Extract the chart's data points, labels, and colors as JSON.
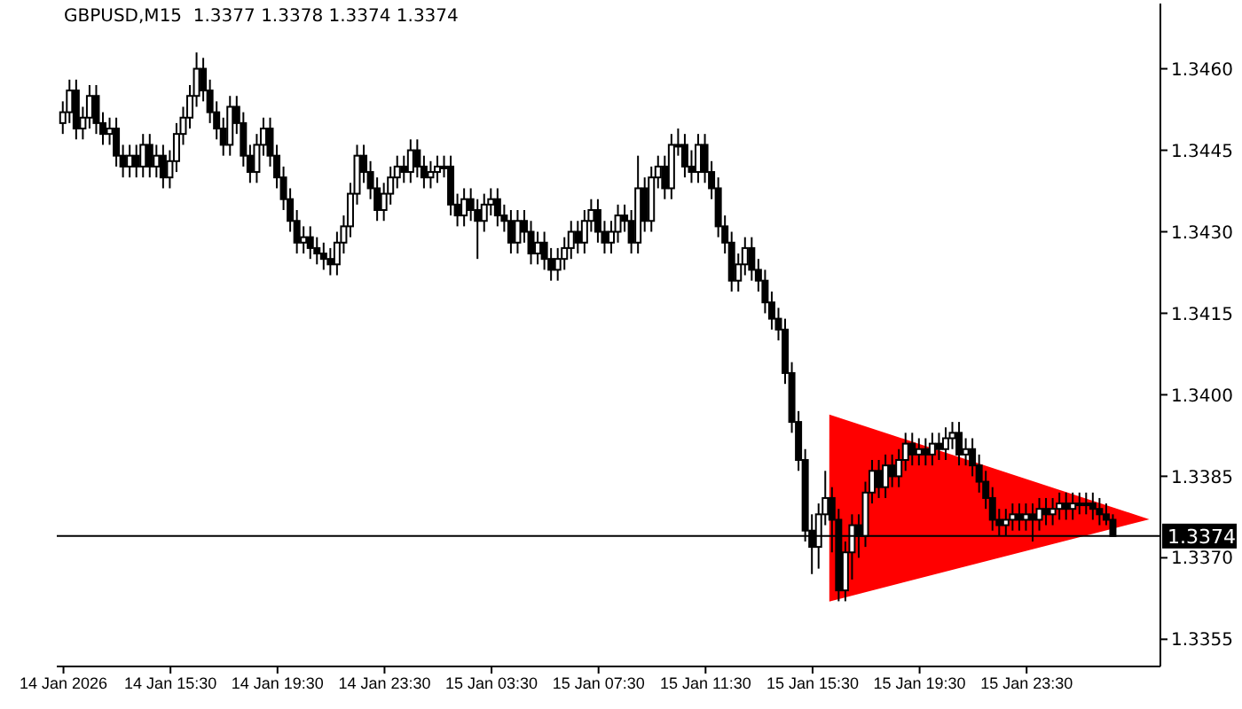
{
  "chart_data": {
    "type": "candlestick",
    "title": "GBPUSD,M15  1.3377 1.3378 1.3374 1.3374",
    "x": [
      "2026-01-14T11:30",
      "2026-01-14T11:45",
      "2026-01-14T12:00",
      "2026-01-14T12:15",
      "2026-01-14T12:30",
      "2026-01-14T12:45",
      "2026-01-14T13:00",
      "2026-01-14T13:15",
      "2026-01-14T13:30",
      "2026-01-14T13:45",
      "2026-01-14T14:00",
      "2026-01-14T14:15",
      "2026-01-14T14:30",
      "2026-01-14T14:45",
      "2026-01-14T15:00",
      "2026-01-14T15:15",
      "2026-01-14T15:30",
      "2026-01-14T15:45",
      "2026-01-14T16:00",
      "2026-01-14T16:15",
      "2026-01-14T16:30",
      "2026-01-14T16:45",
      "2026-01-14T17:00",
      "2026-01-14T17:15",
      "2026-01-14T17:30",
      "2026-01-14T17:45",
      "2026-01-14T18:00",
      "2026-01-14T18:15",
      "2026-01-14T18:30",
      "2026-01-14T18:45",
      "2026-01-14T19:00",
      "2026-01-14T19:15",
      "2026-01-14T19:30",
      "2026-01-14T19:45",
      "2026-01-14T20:00",
      "2026-01-14T20:15",
      "2026-01-14T20:30",
      "2026-01-14T20:45",
      "2026-01-14T21:00",
      "2026-01-14T21:15",
      "2026-01-14T21:30",
      "2026-01-14T21:45",
      "2026-01-14T22:00",
      "2026-01-14T22:15",
      "2026-01-14T22:30",
      "2026-01-14T22:45",
      "2026-01-14T23:00",
      "2026-01-14T23:15",
      "2026-01-14T23:30",
      "2026-01-14T23:45",
      "2026-01-15T00:00",
      "2026-01-15T00:15",
      "2026-01-15T00:30",
      "2026-01-15T00:45",
      "2026-01-15T01:00",
      "2026-01-15T01:15",
      "2026-01-15T01:30",
      "2026-01-15T01:45",
      "2026-01-15T02:00",
      "2026-01-15T02:15",
      "2026-01-15T02:30",
      "2026-01-15T02:45",
      "2026-01-15T03:00",
      "2026-01-15T03:15",
      "2026-01-15T03:30",
      "2026-01-15T03:45",
      "2026-01-15T04:00",
      "2026-01-15T04:15",
      "2026-01-15T04:30",
      "2026-01-15T04:45",
      "2026-01-15T05:00",
      "2026-01-15T05:15",
      "2026-01-15T05:30",
      "2026-01-15T05:45",
      "2026-01-15T06:00",
      "2026-01-15T06:15",
      "2026-01-15T06:30",
      "2026-01-15T06:45",
      "2026-01-15T07:00",
      "2026-01-15T07:15",
      "2026-01-15T07:30",
      "2026-01-15T07:45",
      "2026-01-15T08:00",
      "2026-01-15T08:15",
      "2026-01-15T08:30",
      "2026-01-15T08:45",
      "2026-01-15T09:00",
      "2026-01-15T09:15",
      "2026-01-15T09:30",
      "2026-01-15T09:45",
      "2026-01-15T10:00",
      "2026-01-15T10:15",
      "2026-01-15T10:30",
      "2026-01-15T10:45",
      "2026-01-15T11:00",
      "2026-01-15T11:15",
      "2026-01-15T11:30",
      "2026-01-15T11:45",
      "2026-01-15T12:00",
      "2026-01-15T12:15",
      "2026-01-15T12:30",
      "2026-01-15T12:45",
      "2026-01-15T13:00",
      "2026-01-15T13:15",
      "2026-01-15T13:30",
      "2026-01-15T13:45",
      "2026-01-15T14:00",
      "2026-01-15T14:15",
      "2026-01-15T14:30",
      "2026-01-15T14:45",
      "2026-01-15T15:00",
      "2026-01-15T15:15",
      "2026-01-15T15:30",
      "2026-01-15T15:45",
      "2026-01-15T16:00",
      "2026-01-15T16:15",
      "2026-01-15T16:30",
      "2026-01-15T16:45",
      "2026-01-15T17:00",
      "2026-01-15T17:15",
      "2026-01-15T17:30",
      "2026-01-15T17:45",
      "2026-01-15T18:00",
      "2026-01-15T18:15",
      "2026-01-15T18:30",
      "2026-01-15T18:45",
      "2026-01-15T19:00",
      "2026-01-15T19:15",
      "2026-01-15T19:30",
      "2026-01-15T19:45",
      "2026-01-15T20:00",
      "2026-01-15T20:15",
      "2026-01-15T20:30",
      "2026-01-15T20:45",
      "2026-01-15T21:00",
      "2026-01-15T21:15",
      "2026-01-15T21:30",
      "2026-01-15T21:45",
      "2026-01-15T22:00",
      "2026-01-15T22:15",
      "2026-01-15T22:30",
      "2026-01-15T22:45",
      "2026-01-15T23:00",
      "2026-01-15T23:15",
      "2026-01-15T23:30",
      "2026-01-15T23:45",
      "2026-01-16T00:00",
      "2026-01-16T00:15",
      "2026-01-16T00:30",
      "2026-01-16T00:45",
      "2026-01-16T01:00",
      "2026-01-16T01:15",
      "2026-01-16T01:30",
      "2026-01-16T01:45",
      "2026-01-16T02:00",
      "2026-01-16T02:15",
      "2026-01-16T02:30",
      "2026-01-16T02:45"
    ],
    "ohlc": [
      [
        1.345,
        1.3454,
        1.3448,
        1.3452
      ],
      [
        1.3452,
        1.3458,
        1.345,
        1.3456
      ],
      [
        1.3456,
        1.3458,
        1.3447,
        1.3449
      ],
      [
        1.3449,
        1.3453,
        1.3447,
        1.3451
      ],
      [
        1.3451,
        1.3457,
        1.3449,
        1.3455
      ],
      [
        1.3455,
        1.3457,
        1.3448,
        1.345
      ],
      [
        1.345,
        1.3452,
        1.3446,
        1.3448
      ],
      [
        1.3448,
        1.3451,
        1.3446,
        1.3449
      ],
      [
        1.3449,
        1.3451,
        1.3442,
        1.3444
      ],
      [
        1.3444,
        1.3446,
        1.344,
        1.3442
      ],
      [
        1.3442,
        1.3446,
        1.344,
        1.3444
      ],
      [
        1.3444,
        1.3446,
        1.344,
        1.3442
      ],
      [
        1.3442,
        1.3448,
        1.344,
        1.3446
      ],
      [
        1.3446,
        1.3448,
        1.344,
        1.3442
      ],
      [
        1.3442,
        1.3446,
        1.344,
        1.3444
      ],
      [
        1.3444,
        1.3446,
        1.3438,
        1.344
      ],
      [
        1.344,
        1.3445,
        1.3438,
        1.3443
      ],
      [
        1.3443,
        1.345,
        1.3441,
        1.3448
      ],
      [
        1.3448,
        1.3453,
        1.3446,
        1.3451
      ],
      [
        1.3451,
        1.3457,
        1.3449,
        1.3455
      ],
      [
        1.3455,
        1.3463,
        1.3453,
        1.346
      ],
      [
        1.346,
        1.3462,
        1.3454,
        1.3456
      ],
      [
        1.3456,
        1.3458,
        1.345,
        1.3452
      ],
      [
        1.3452,
        1.3454,
        1.3447,
        1.3449
      ],
      [
        1.3449,
        1.3451,
        1.3444,
        1.3446
      ],
      [
        1.3446,
        1.3455,
        1.3444,
        1.3453
      ],
      [
        1.3453,
        1.3455,
        1.3448,
        1.345
      ],
      [
        1.345,
        1.3452,
        1.3442,
        1.3444
      ],
      [
        1.3444,
        1.3446,
        1.3439,
        1.3441
      ],
      [
        1.3441,
        1.3448,
        1.3439,
        1.3446
      ],
      [
        1.3446,
        1.3451,
        1.3444,
        1.3449
      ],
      [
        1.3449,
        1.3451,
        1.3442,
        1.3444
      ],
      [
        1.3444,
        1.3446,
        1.3438,
        1.344
      ],
      [
        1.344,
        1.3442,
        1.3434,
        1.3436
      ],
      [
        1.3436,
        1.3438,
        1.343,
        1.3432
      ],
      [
        1.3432,
        1.3434,
        1.3426,
        1.3428
      ],
      [
        1.3428,
        1.3431,
        1.3426,
        1.3429
      ],
      [
        1.3429,
        1.3431,
        1.3425,
        1.3427
      ],
      [
        1.3427,
        1.3429,
        1.3424,
        1.3426
      ],
      [
        1.3426,
        1.3428,
        1.3423,
        1.3425
      ],
      [
        1.3425,
        1.3427,
        1.3422,
        1.3424
      ],
      [
        1.3424,
        1.343,
        1.3422,
        1.3428
      ],
      [
        1.3428,
        1.3433,
        1.3426,
        1.3431
      ],
      [
        1.3431,
        1.3439,
        1.3429,
        1.3437
      ],
      [
        1.3437,
        1.3446,
        1.3435,
        1.3444
      ],
      [
        1.3444,
        1.3446,
        1.3439,
        1.3441
      ],
      [
        1.3441,
        1.3443,
        1.3436,
        1.3438
      ],
      [
        1.3438,
        1.344,
        1.3432,
        1.3434
      ],
      [
        1.3434,
        1.3439,
        1.3432,
        1.3437
      ],
      [
        1.3437,
        1.3442,
        1.3435,
        1.344
      ],
      [
        1.344,
        1.3444,
        1.3438,
        1.3442
      ],
      [
        1.3442,
        1.3444,
        1.3439,
        1.3441
      ],
      [
        1.3441,
        1.3447,
        1.3439,
        1.3445
      ],
      [
        1.3445,
        1.3447,
        1.344,
        1.3442
      ],
      [
        1.3442,
        1.3444,
        1.3438,
        1.344
      ],
      [
        1.344,
        1.3443,
        1.3438,
        1.3441
      ],
      [
        1.3441,
        1.3444,
        1.3439,
        1.3442
      ],
      [
        1.3442,
        1.3444,
        1.344,
        1.3442
      ],
      [
        1.3442,
        1.3444,
        1.3433,
        1.3435
      ],
      [
        1.3435,
        1.3437,
        1.3431,
        1.3433
      ],
      [
        1.3433,
        1.3438,
        1.3431,
        1.3436
      ],
      [
        1.3436,
        1.3438,
        1.3432,
        1.3434
      ],
      [
        1.3434,
        1.3436,
        1.3425,
        1.3432
      ],
      [
        1.3432,
        1.3437,
        1.343,
        1.3435
      ],
      [
        1.3435,
        1.3438,
        1.3433,
        1.3436
      ],
      [
        1.3436,
        1.3438,
        1.3431,
        1.3433
      ],
      [
        1.3433,
        1.3435,
        1.343,
        1.3432
      ],
      [
        1.3432,
        1.3434,
        1.3426,
        1.3428
      ],
      [
        1.3428,
        1.3434,
        1.3426,
        1.3432
      ],
      [
        1.3432,
        1.3434,
        1.3428,
        1.343
      ],
      [
        1.343,
        1.3432,
        1.3424,
        1.3426
      ],
      [
        1.3426,
        1.343,
        1.3424,
        1.3428
      ],
      [
        1.3428,
        1.343,
        1.3423,
        1.3425
      ],
      [
        1.3425,
        1.3427,
        1.3421,
        1.3423
      ],
      [
        1.3423,
        1.3427,
        1.3421,
        1.3425
      ],
      [
        1.3425,
        1.3429,
        1.3423,
        1.3427
      ],
      [
        1.3427,
        1.3432,
        1.3425,
        1.343
      ],
      [
        1.343,
        1.3432,
        1.3426,
        1.3428
      ],
      [
        1.3428,
        1.3434,
        1.3426,
        1.3432
      ],
      [
        1.3432,
        1.3436,
        1.343,
        1.3434
      ],
      [
        1.3434,
        1.3436,
        1.3428,
        1.343
      ],
      [
        1.343,
        1.3432,
        1.3426,
        1.3428
      ],
      [
        1.3428,
        1.3432,
        1.3426,
        1.343
      ],
      [
        1.343,
        1.3435,
        1.3428,
        1.3433
      ],
      [
        1.3433,
        1.3435,
        1.343,
        1.3432
      ],
      [
        1.3432,
        1.3434,
        1.3426,
        1.3428
      ],
      [
        1.3428,
        1.3444,
        1.3426,
        1.3438
      ],
      [
        1.3438,
        1.344,
        1.343,
        1.3432
      ],
      [
        1.3432,
        1.3442,
        1.343,
        1.344
      ],
      [
        1.344,
        1.3444,
        1.3438,
        1.3442
      ],
      [
        1.3442,
        1.3444,
        1.3436,
        1.3438
      ],
      [
        1.3438,
        1.3448,
        1.3436,
        1.3446
      ],
      [
        1.3446,
        1.3449,
        1.3444,
        1.3446
      ],
      [
        1.3446,
        1.3448,
        1.344,
        1.3442
      ],
      [
        1.3442,
        1.3445,
        1.3439,
        1.3441
      ],
      [
        1.3441,
        1.3448,
        1.3439,
        1.3446
      ],
      [
        1.3446,
        1.3448,
        1.3439,
        1.3441
      ],
      [
        1.3441,
        1.3443,
        1.3436,
        1.3438
      ],
      [
        1.3438,
        1.344,
        1.3429,
        1.3431
      ],
      [
        1.3431,
        1.3433,
        1.3426,
        1.3428
      ],
      [
        1.3428,
        1.343,
        1.3419,
        1.3421
      ],
      [
        1.3421,
        1.3426,
        1.3419,
        1.3424
      ],
      [
        1.3424,
        1.3429,
        1.3422,
        1.3427
      ],
      [
        1.3427,
        1.3429,
        1.3421,
        1.3423
      ],
      [
        1.3423,
        1.3425,
        1.3419,
        1.3421
      ],
      [
        1.3421,
        1.3423,
        1.3415,
        1.3417
      ],
      [
        1.3417,
        1.3419,
        1.3412,
        1.3414
      ],
      [
        1.3414,
        1.3416,
        1.341,
        1.3412
      ],
      [
        1.3412,
        1.3414,
        1.3402,
        1.3404
      ],
      [
        1.3404,
        1.3406,
        1.3393,
        1.3395
      ],
      [
        1.3395,
        1.3397,
        1.3386,
        1.3388
      ],
      [
        1.3388,
        1.339,
        1.3373,
        1.3375
      ],
      [
        1.3375,
        1.3378,
        1.3367,
        1.3372
      ],
      [
        1.3372,
        1.338,
        1.3368,
        1.3378
      ],
      [
        1.3378,
        1.3386,
        1.3376,
        1.3381
      ],
      [
        1.3381,
        1.3383,
        1.3371,
        1.3377
      ],
      [
        1.3377,
        1.3379,
        1.3362,
        1.3364
      ],
      [
        1.3364,
        1.3373,
        1.3362,
        1.3371
      ],
      [
        1.3371,
        1.3378,
        1.3366,
        1.3376
      ],
      [
        1.3376,
        1.3378,
        1.337,
        1.3374
      ],
      [
        1.3374,
        1.3384,
        1.3372,
        1.3382
      ],
      [
        1.3382,
        1.3388,
        1.338,
        1.3386
      ],
      [
        1.3386,
        1.3388,
        1.3381,
        1.3383
      ],
      [
        1.3383,
        1.3389,
        1.3381,
        1.3387
      ],
      [
        1.3387,
        1.3389,
        1.3383,
        1.3385
      ],
      [
        1.3385,
        1.339,
        1.3383,
        1.3388
      ],
      [
        1.3388,
        1.3393,
        1.3386,
        1.3391
      ],
      [
        1.3391,
        1.3393,
        1.3387,
        1.3389
      ],
      [
        1.3389,
        1.3392,
        1.3387,
        1.339
      ],
      [
        1.339,
        1.3392,
        1.3387,
        1.3389
      ],
      [
        1.3389,
        1.3393,
        1.3387,
        1.3391
      ],
      [
        1.3391,
        1.3393,
        1.3388,
        1.339
      ],
      [
        1.339,
        1.3394,
        1.3388,
        1.3392
      ],
      [
        1.3392,
        1.3395,
        1.339,
        1.3393
      ],
      [
        1.3393,
        1.3395,
        1.3387,
        1.3389
      ],
      [
        1.3389,
        1.3392,
        1.3387,
        1.339
      ],
      [
        1.339,
        1.3392,
        1.3385,
        1.3387
      ],
      [
        1.3387,
        1.3389,
        1.3382,
        1.3384
      ],
      [
        1.3384,
        1.3386,
        1.3379,
        1.3381
      ],
      [
        1.3381,
        1.3383,
        1.3375,
        1.3377
      ],
      [
        1.3377,
        1.3379,
        1.3374,
        1.3376
      ],
      [
        1.3376,
        1.3379,
        1.3374,
        1.3377
      ],
      [
        1.3377,
        1.338,
        1.3375,
        1.3378
      ],
      [
        1.3378,
        1.338,
        1.3375,
        1.3377
      ],
      [
        1.3377,
        1.338,
        1.3375,
        1.3378
      ],
      [
        1.3378,
        1.338,
        1.3373,
        1.3377
      ],
      [
        1.3377,
        1.3381,
        1.3375,
        1.3379
      ],
      [
        1.3379,
        1.3381,
        1.3376,
        1.3378
      ],
      [
        1.3378,
        1.3381,
        1.3376,
        1.3379
      ],
      [
        1.3379,
        1.3382,
        1.3377,
        1.338
      ],
      [
        1.338,
        1.3382,
        1.3377,
        1.3379
      ],
      [
        1.3379,
        1.3382,
        1.3377,
        1.338
      ],
      [
        1.338,
        1.3382,
        1.3378,
        1.338
      ],
      [
        1.338,
        1.3382,
        1.3378,
        1.338
      ],
      [
        1.338,
        1.3382,
        1.3377,
        1.3379
      ],
      [
        1.3379,
        1.3381,
        1.3376,
        1.3378
      ],
      [
        1.3378,
        1.338,
        1.3376,
        1.3377
      ],
      [
        1.3377,
        1.3378,
        1.3374,
        1.3374
      ]
    ],
    "xlim": [
      "2026-01-14T11:15",
      "2026-01-16T04:30"
    ],
    "xticks": [
      {
        "value": "2026-01-14T11:30",
        "label": "14 Jan 2026"
      },
      {
        "value": "2026-01-14T15:30",
        "label": "14 Jan 15:30"
      },
      {
        "value": "2026-01-14T19:30",
        "label": "14 Jan 19:30"
      },
      {
        "value": "2026-01-14T23:30",
        "label": "14 Jan 23:30"
      },
      {
        "value": "2026-01-15T03:30",
        "label": "15 Jan 03:30"
      },
      {
        "value": "2026-01-15T07:30",
        "label": "15 Jan 07:30"
      },
      {
        "value": "2026-01-15T11:30",
        "label": "15 Jan 11:30"
      },
      {
        "value": "2026-01-15T15:30",
        "label": "15 Jan 15:30"
      },
      {
        "value": "2026-01-15T19:30",
        "label": "15 Jan 19:30"
      },
      {
        "value": "2026-01-15T23:30",
        "label": "15 Jan 23:30"
      }
    ],
    "ylim": [
      1.335,
      1.3472
    ],
    "yticks": [
      1.3355,
      {
        "value": 1.337,
        "label": "1.3370"
      },
      1.3385,
      {
        "value": 1.34,
        "label": "1.3400"
      },
      1.3415,
      {
        "value": 1.343,
        "label": "1.3430"
      },
      1.3445,
      {
        "value": 1.346,
        "label": "1.3460"
      }
    ],
    "ref_lines": [
      {
        "axis": "y",
        "value": 1.3374,
        "label": "1.3374",
        "color": "#000000"
      }
    ]
  }
}
